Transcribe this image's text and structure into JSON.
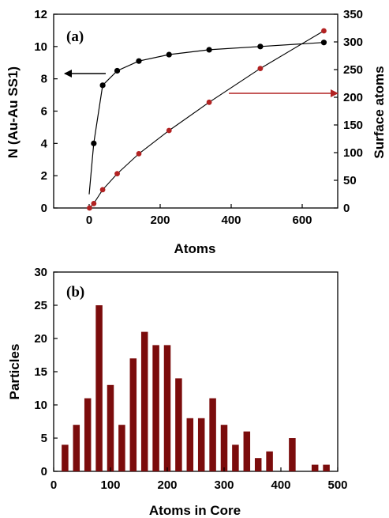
{
  "chart_data": [
    {
      "type": "scatter",
      "panel_label": "(a)",
      "xlabel": "Atoms",
      "ylabel": "N (Au-Au SS1)",
      "y2label": "Surface atoms",
      "xlim": [
        -100,
        700
      ],
      "xticks": [
        0,
        200,
        400,
        600
      ],
      "ylim": [
        0,
        12
      ],
      "yticks": [
        0,
        2,
        4,
        6,
        8,
        10,
        12
      ],
      "y2lim": [
        0,
        350
      ],
      "y2ticks": [
        0,
        50,
        100,
        150,
        200,
        250,
        300,
        350
      ],
      "grid": false,
      "series": [
        {
          "axis": "left",
          "color": "#000000",
          "x": [
            13,
            38,
            79,
            140,
            225,
            338,
            482,
            661
          ],
          "y": [
            4.0,
            7.6,
            8.5,
            9.1,
            9.5,
            9.8,
            10.0,
            10.25
          ]
        },
        {
          "axis": "right",
          "color": "#b22222",
          "x": [
            1,
            13,
            38,
            79,
            140,
            225,
            338,
            482,
            661
          ],
          "y": [
            0,
            8,
            33,
            62,
            98,
            140,
            191,
            252,
            320
          ]
        }
      ],
      "annotations": [
        {
          "type": "arrow",
          "points_to": "left-axis",
          "color": "#000000"
        },
        {
          "type": "arrow",
          "points_to": "right-axis",
          "color": "#b22222"
        }
      ]
    },
    {
      "type": "bar",
      "panel_label": "(b)",
      "xlabel": "Atoms in Core",
      "ylabel": "Particles",
      "xlim": [
        0,
        500
      ],
      "xticks": [
        0,
        100,
        200,
        300,
        400,
        500
      ],
      "ylim": [
        0,
        30
      ],
      "yticks": [
        0,
        5,
        10,
        15,
        20,
        25,
        30
      ],
      "grid": false,
      "bar_color": "#7b0c0c",
      "x": [
        20,
        40,
        60,
        80,
        100,
        120,
        140,
        160,
        180,
        200,
        220,
        240,
        260,
        280,
        300,
        320,
        340,
        360,
        380,
        420,
        460,
        480
      ],
      "values": [
        4,
        7,
        11,
        25,
        13,
        7,
        17,
        21,
        19,
        19,
        14,
        8,
        8,
        11,
        7,
        4,
        6,
        2,
        3,
        5,
        1,
        1
      ]
    }
  ]
}
